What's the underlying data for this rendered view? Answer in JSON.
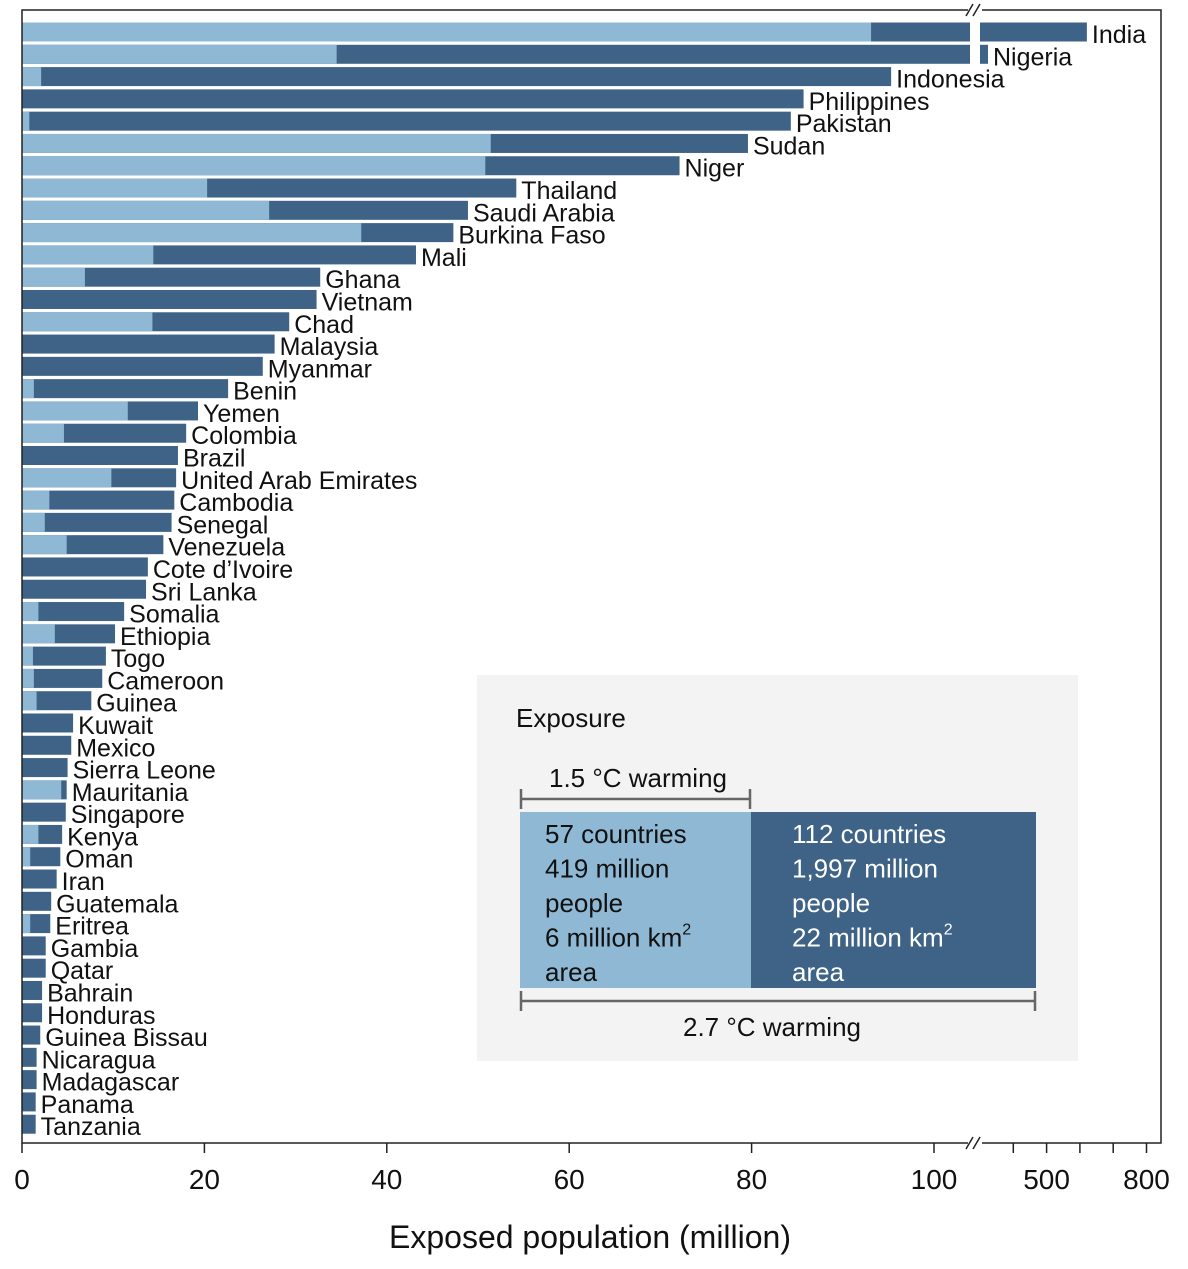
{
  "chart_data": {
    "type": "bar",
    "orientation": "horizontal",
    "stacked_overlay": true,
    "xlabel": "Exposed population (million)",
    "x_axis": {
      "segments": [
        {
          "range": [
            0,
            104
          ],
          "ticks": [
            0,
            20,
            40,
            60,
            80,
            100
          ],
          "labels": [
            "0",
            "20",
            "40",
            "60",
            "80",
            "100"
          ]
        },
        {
          "range": [
            300,
            820
          ],
          "ticks": [
            400,
            500,
            600,
            700,
            800
          ],
          "labels": [
            "",
            "500",
            "",
            "",
            "800"
          ]
        }
      ],
      "break": true
    },
    "categories": [
      "India",
      "Nigeria",
      "Indonesia",
      "Philippines",
      "Pakistan",
      "Sudan",
      "Niger",
      "Thailand",
      "Saudi Arabia",
      "Burkina Faso",
      "Mali",
      "Ghana",
      "Vietnam",
      "Chad",
      "Malaysia",
      "Myanmar",
      "Benin",
      "Yemen",
      "Colombia",
      "Brazil",
      "United Arab Emirates",
      "Cambodia",
      "Senegal",
      "Venezuela",
      "Cote d’Ivoire",
      "Sri Lanka",
      "Somalia",
      "Ethiopia",
      "Togo",
      "Cameroon",
      "Guinea",
      "Kuwait",
      "Mexico",
      "Sierra Leone",
      "Mauritania",
      "Singapore",
      "Kenya",
      "Oman",
      "Iran",
      "Guatemala",
      "Eritrea",
      "Gambia",
      "Qatar",
      "Bahrain",
      "Honduras",
      "Guinea Bissau",
      "Nicaragua",
      "Madagascar",
      "Panama",
      "Tanzania"
    ],
    "series": [
      {
        "name": "1.5 °C warming",
        "color": "#8fb8d4",
        "values": [
          93.1,
          34.5,
          2.1,
          0,
          0.8,
          51.4,
          50.8,
          20.3,
          27.1,
          37.2,
          14.4,
          6.9,
          0,
          14.3,
          0,
          0,
          1.3,
          11.6,
          4.6,
          0,
          9.8,
          3.0,
          2.5,
          4.9,
          0,
          0,
          1.8,
          3.6,
          1.2,
          1.3,
          1.6,
          0,
          0,
          0,
          4.3,
          0,
          1.8,
          0.9,
          0,
          0,
          0.9,
          0,
          0,
          0,
          0,
          0,
          0,
          0,
          0,
          0
        ]
      },
      {
        "name": "2.7 °C warming",
        "color": "#3e6387",
        "values": [
          621,
          324,
          95.3,
          85.7,
          84.3,
          79.6,
          72.1,
          54.2,
          48.9,
          47.3,
          43.2,
          32.7,
          32.3,
          29.3,
          27.7,
          26.4,
          22.6,
          19.3,
          18.0,
          17.1,
          16.9,
          16.7,
          16.4,
          15.5,
          13.8,
          13.6,
          11.2,
          10.2,
          9.2,
          8.8,
          7.6,
          5.6,
          5.4,
          5.0,
          4.9,
          4.8,
          4.4,
          4.2,
          3.8,
          3.2,
          3.1,
          2.6,
          2.6,
          2.2,
          2.2,
          2.0,
          1.6,
          1.6,
          1.5,
          1.5
        ]
      }
    ]
  },
  "legend": {
    "title": "Exposure",
    "low_label": "1.5 °C warming",
    "high_label": "2.7 °C warming",
    "low_lines": [
      "57 countries",
      "419 million",
      "people",
      "6 million km",
      "area"
    ],
    "high_lines": [
      "112 countries",
      "1,997 million",
      "people",
      "22 million km",
      "area"
    ],
    "superscript": "2"
  }
}
